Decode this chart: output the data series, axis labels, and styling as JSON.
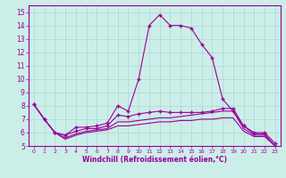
{
  "xlabel": "Windchill (Refroidissement éolien,°C)",
  "background_color": "#cceee8",
  "grid_color": "#aad8d2",
  "line_color": "#990099",
  "xlim": [
    -0.5,
    23.5
  ],
  "ylim": [
    5,
    15.5
  ],
  "xticks": [
    0,
    1,
    2,
    3,
    4,
    5,
    6,
    7,
    8,
    9,
    10,
    11,
    12,
    13,
    14,
    15,
    16,
    17,
    18,
    19,
    20,
    21,
    22,
    23
  ],
  "yticks": [
    5,
    6,
    7,
    8,
    9,
    10,
    11,
    12,
    13,
    14,
    15
  ],
  "series": [
    {
      "x": [
        0,
        1,
        2,
        3,
        4,
        5,
        6,
        7,
        8,
        9,
        10,
        11,
        12,
        13,
        14,
        15,
        16,
        17,
        18,
        19,
        20,
        21,
        22,
        23
      ],
      "y": [
        8.1,
        7.0,
        6.0,
        5.8,
        6.4,
        6.4,
        6.5,
        6.7,
        8.0,
        7.6,
        10.0,
        14.0,
        14.8,
        14.0,
        14.0,
        13.8,
        12.6,
        11.6,
        8.5,
        7.6,
        6.5,
        5.9,
        5.9,
        5.0
      ],
      "style": "-",
      "marker": "+"
    },
    {
      "x": [
        0,
        1,
        2,
        3,
        4,
        5,
        6,
        7,
        8,
        9,
        10,
        11,
        12,
        13,
        14,
        15,
        16,
        17,
        18,
        19,
        20,
        21,
        22,
        23
      ],
      "y": [
        8.1,
        7.0,
        6.0,
        5.5,
        5.8,
        6.0,
        6.1,
        6.2,
        6.5,
        6.5,
        6.6,
        6.7,
        6.8,
        6.8,
        6.9,
        6.9,
        7.0,
        7.0,
        7.1,
        7.1,
        6.1,
        5.7,
        5.7,
        5.0
      ],
      "style": "-",
      "marker": null
    },
    {
      "x": [
        0,
        1,
        2,
        3,
        4,
        5,
        6,
        7,
        8,
        9,
        10,
        11,
        12,
        13,
        14,
        15,
        16,
        17,
        18,
        19,
        20,
        21,
        22,
        23
      ],
      "y": [
        8.1,
        7.0,
        6.0,
        5.6,
        5.9,
        6.1,
        6.2,
        6.3,
        6.8,
        6.8,
        6.9,
        7.0,
        7.1,
        7.1,
        7.2,
        7.3,
        7.4,
        7.5,
        7.6,
        7.6,
        6.3,
        5.8,
        5.8,
        5.0
      ],
      "style": "-",
      "marker": null
    },
    {
      "x": [
        0,
        1,
        2,
        3,
        4,
        5,
        6,
        7,
        8,
        9,
        10,
        11,
        12,
        13,
        14,
        15,
        16,
        17,
        18,
        19,
        20,
        21,
        22,
        23
      ],
      "y": [
        8.1,
        7.0,
        6.0,
        5.8,
        6.1,
        6.3,
        6.3,
        6.5,
        7.3,
        7.2,
        7.4,
        7.5,
        7.6,
        7.5,
        7.5,
        7.5,
        7.5,
        7.6,
        7.8,
        7.8,
        6.5,
        6.0,
        6.0,
        5.2
      ],
      "style": "-",
      "marker": "+"
    }
  ]
}
